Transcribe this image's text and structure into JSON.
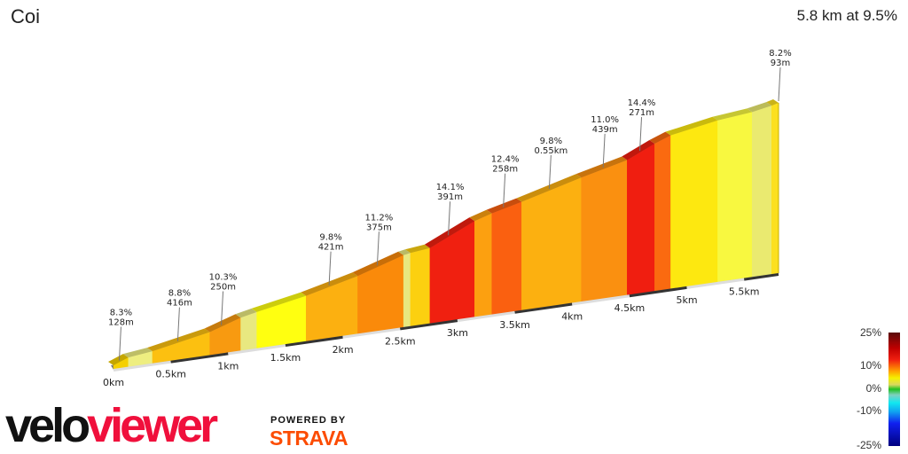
{
  "header": {
    "title": "Coi",
    "summary": "5.8 km at 9.5%"
  },
  "chart_data": {
    "type": "area",
    "xlabel": "",
    "ylabel": "",
    "xlim": [
      0,
      5.8
    ],
    "segments": [
      {
        "from": 0.0,
        "to": 0.13,
        "elev_start": 0,
        "elev_end": 19,
        "color": "#f5d000"
      },
      {
        "from": 0.13,
        "to": 0.34,
        "elev_start": 19,
        "elev_end": 28,
        "color": "#eeee80"
      },
      {
        "from": 0.34,
        "to": 0.84,
        "elev_start": 28,
        "elev_end": 64,
        "color": "#fcc010"
      },
      {
        "from": 0.84,
        "to": 1.11,
        "elev_start": 64,
        "elev_end": 97,
        "color": "#f89a10"
      },
      {
        "from": 1.11,
        "to": 1.25,
        "elev_start": 97,
        "elev_end": 108,
        "color": "#e8e880"
      },
      {
        "from": 1.25,
        "to": 1.68,
        "elev_start": 108,
        "elev_end": 138,
        "color": "#ffff10"
      },
      {
        "from": 1.68,
        "to": 2.13,
        "elev_start": 138,
        "elev_end": 179,
        "color": "#fcb010"
      },
      {
        "from": 2.13,
        "to": 2.53,
        "elev_start": 179,
        "elev_end": 226,
        "color": "#fa8a0a"
      },
      {
        "from": 2.53,
        "to": 2.59,
        "elev_start": 226,
        "elev_end": 230,
        "color": "#e8e880"
      },
      {
        "from": 2.59,
        "to": 2.76,
        "elev_start": 230,
        "elev_end": 237,
        "color": "#fcd010"
      },
      {
        "from": 2.76,
        "to": 3.15,
        "elev_start": 237,
        "elev_end": 305,
        "color": "#f02010"
      },
      {
        "from": 3.15,
        "to": 3.3,
        "elev_start": 305,
        "elev_end": 322,
        "color": "#fca010"
      },
      {
        "from": 3.3,
        "to": 3.56,
        "elev_start": 322,
        "elev_end": 346,
        "color": "#fa6010"
      },
      {
        "from": 3.56,
        "to": 4.08,
        "elev_start": 346,
        "elev_end": 398,
        "color": "#fcb010"
      },
      {
        "from": 4.08,
        "to": 4.48,
        "elev_start": 398,
        "elev_end": 434,
        "color": "#fa9010"
      },
      {
        "from": 4.48,
        "to": 4.72,
        "elev_start": 434,
        "elev_end": 475,
        "color": "#f01e10"
      },
      {
        "from": 4.72,
        "to": 4.86,
        "elev_start": 475,
        "elev_end": 495,
        "color": "#fa6a10"
      },
      {
        "from": 4.86,
        "to": 5.27,
        "elev_start": 495,
        "elev_end": 522,
        "color": "#fde810"
      },
      {
        "from": 5.27,
        "to": 5.57,
        "elev_start": 522,
        "elev_end": 533,
        "color": "#f8f840"
      },
      {
        "from": 5.57,
        "to": 5.74,
        "elev_start": 533,
        "elev_end": 545,
        "color": "#eaea70"
      },
      {
        "from": 5.74,
        "to": 5.8,
        "elev_start": 545,
        "elev_end": 551,
        "color": "#fce020"
      }
    ],
    "annotations": [
      {
        "km": 0.05,
        "grade": "8.3%",
        "length": "128m"
      },
      {
        "km": 0.56,
        "grade": "8.8%",
        "length": "416m"
      },
      {
        "km": 0.94,
        "grade": "10.3%",
        "length": "250m"
      },
      {
        "km": 1.88,
        "grade": "9.8%",
        "length": "421m"
      },
      {
        "km": 2.3,
        "grade": "11.2%",
        "length": "375m"
      },
      {
        "km": 2.92,
        "grade": "14.1%",
        "length": "391m"
      },
      {
        "km": 3.4,
        "grade": "12.4%",
        "length": "258m"
      },
      {
        "km": 3.8,
        "grade": "9.8%",
        "length": "0.55km"
      },
      {
        "km": 4.27,
        "grade": "11.0%",
        "length": "439m"
      },
      {
        "km": 4.59,
        "grade": "14.4%",
        "length": "271m"
      },
      {
        "km": 5.8,
        "grade": "8.2%",
        "length": "93m"
      }
    ],
    "x_ticks": [
      {
        "km": 0,
        "label": "0km"
      },
      {
        "km": 0.5,
        "label": "0.5km"
      },
      {
        "km": 1,
        "label": "1km"
      },
      {
        "km": 1.5,
        "label": "1.5km"
      },
      {
        "km": 2,
        "label": "2km"
      },
      {
        "km": 2.5,
        "label": "2.5km"
      },
      {
        "km": 3,
        "label": "3km"
      },
      {
        "km": 3.5,
        "label": "3.5km"
      },
      {
        "km": 4,
        "label": "4km"
      },
      {
        "km": 4.5,
        "label": "4.5km"
      },
      {
        "km": 5,
        "label": "5km"
      },
      {
        "km": 5.5,
        "label": "5.5km"
      }
    ],
    "legend": {
      "type": "gradient-colorbar",
      "labels": [
        "25%",
        "10%",
        "0%",
        "-10%",
        "-25%"
      ]
    }
  },
  "branding": {
    "logo_velo": "velo",
    "logo_viewer": "viewer",
    "powered_by": "POWERED BY",
    "strava": "STRAVA"
  }
}
